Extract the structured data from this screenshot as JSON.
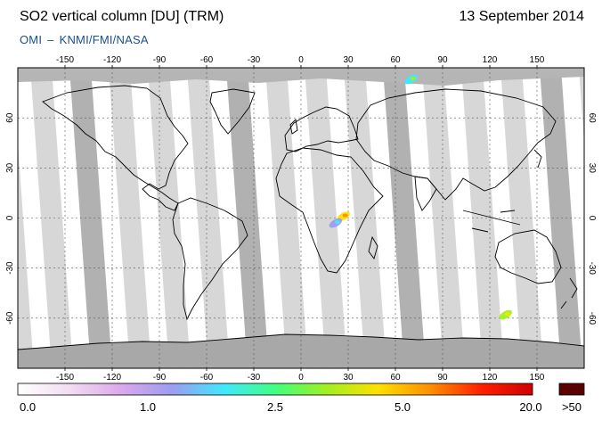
{
  "header": {
    "title": "SO2 vertical column [DU] (TRM)",
    "date": "13 September 2014",
    "credit_left": "OMI",
    "credit_sep": "–",
    "credit_right": "KNMI/FMI/NASA"
  },
  "axes": {
    "lon_ticks": [
      "-150",
      "-120",
      "-90",
      "-60",
      "-30",
      "0",
      "30",
      "60",
      "90",
      "120",
      "150"
    ],
    "lon_values": [
      -150,
      -120,
      -90,
      -60,
      -30,
      0,
      30,
      60,
      90,
      120,
      150
    ],
    "lat_ticks": [
      "60",
      "30",
      "0",
      "-30",
      "-60"
    ],
    "lat_values": [
      60,
      30,
      0,
      -30,
      -60
    ],
    "lon_range": [
      -180,
      180
    ],
    "lat_range": [
      -90,
      90
    ]
  },
  "colorbar": {
    "labels": [
      "0.0",
      "1.0",
      "2.5",
      "5.0",
      "20.0",
      ">50"
    ],
    "colors": [
      "#ffffff",
      "#f2dcf2",
      "#dca8ec",
      "#9c9cf0",
      "#40e8ff",
      "#40ff80",
      "#a0f020",
      "#ffe000",
      "#ff9000",
      "#ff2000",
      "#d00000"
    ],
    "over_color": "#5a0000"
  },
  "colors": {
    "swath_light": "#d3d3d3",
    "swath_dark": "#a9a9a9",
    "polar": "#a8a8a8",
    "coast": "#000000"
  },
  "hotspots": [
    {
      "lon": 27,
      "lat": 1,
      "level": 4.0
    },
    {
      "lon": 22,
      "lat": -3,
      "level": 1.5
    },
    {
      "lon": 70,
      "lat": 83,
      "level": 2.0
    },
    {
      "lon": 130,
      "lat": -58,
      "level": 3.0
    }
  ]
}
